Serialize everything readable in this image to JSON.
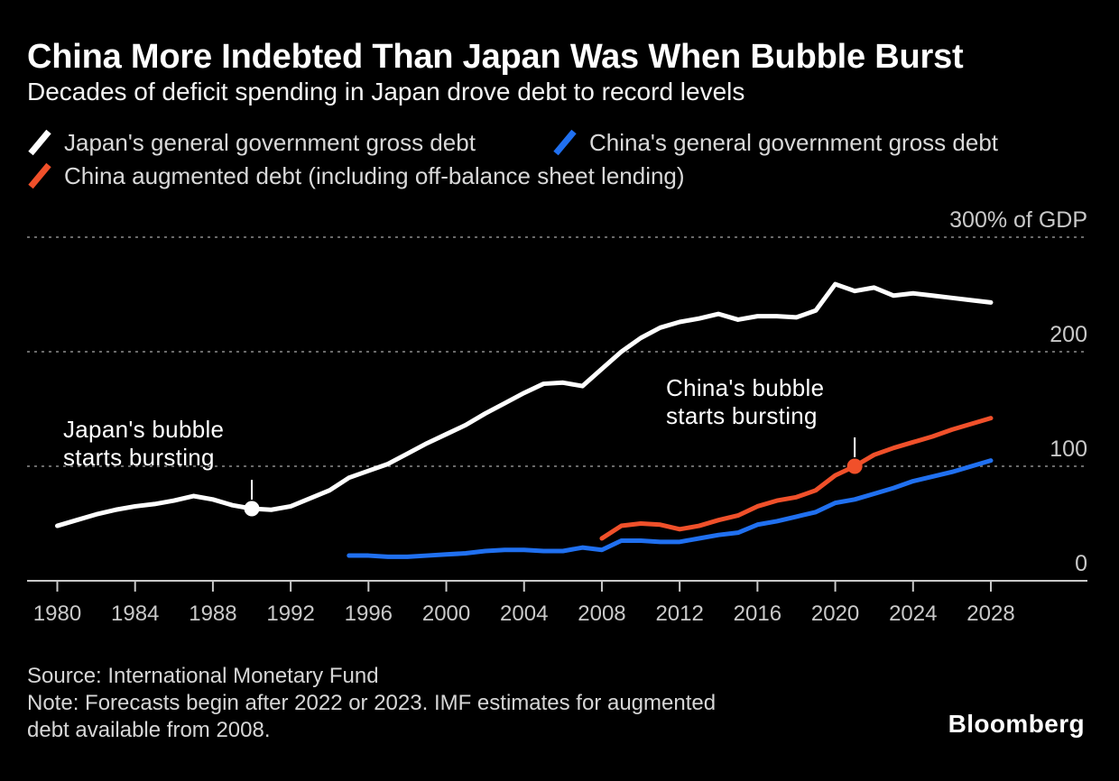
{
  "chart_data": {
    "type": "line",
    "title": "China More Indebted Than Japan Was When Bubble Burst",
    "subtitle": "Decades of deficit spending in Japan drove debt to record levels",
    "unit": "% of GDP",
    "xlim": [
      1980,
      2028
    ],
    "ylim": [
      0,
      300
    ],
    "grid": "dotted-horizontal",
    "legend_position": "top",
    "x_ticks": [
      1980,
      1984,
      1988,
      1992,
      1996,
      2000,
      2004,
      2008,
      2012,
      2016,
      2020,
      2024,
      2028
    ],
    "y_ticks": [
      {
        "value": 0,
        "label": "0"
      },
      {
        "value": 100,
        "label": "100"
      },
      {
        "value": 200,
        "label": "200"
      },
      {
        "value": 300,
        "label": "300% of GDP"
      }
    ],
    "grid_values": [
      100,
      200,
      300
    ],
    "series": [
      {
        "id": "japan",
        "name": "Japan's general government gross debt",
        "color": "#ffffff",
        "start_year": 1980,
        "values": [
          48,
          53,
          58,
          62,
          65,
          67,
          70,
          74,
          71,
          66,
          63,
          62,
          65,
          72,
          79,
          90,
          96,
          102,
          111,
          120,
          128,
          136,
          146,
          155,
          164,
          172,
          173,
          170,
          185,
          200,
          212,
          221,
          226,
          229,
          233,
          228,
          231,
          231,
          230,
          236,
          259,
          253,
          256,
          249,
          251,
          249,
          247,
          245,
          243
        ]
      },
      {
        "id": "china_gov",
        "name": "China's general government gross debt",
        "color": "#2070f0",
        "start_year": 1995,
        "values": [
          22,
          22,
          21,
          21,
          22,
          23,
          24,
          26,
          27,
          27,
          26,
          26,
          29,
          27,
          35,
          35,
          34,
          34,
          37,
          40,
          42,
          49,
          52,
          56,
          60,
          68,
          71,
          76,
          81,
          87,
          91,
          95,
          100,
          105
        ]
      },
      {
        "id": "china_augmented",
        "name": "China augmented debt (including off-balance sheet lending)",
        "color": "#f0502a",
        "start_year": 2008,
        "values": [
          37,
          48,
          50,
          49,
          45,
          48,
          53,
          57,
          65,
          70,
          73,
          79,
          92,
          100,
          110,
          116,
          121,
          126,
          132,
          137,
          142
        ]
      }
    ],
    "annotations": [
      {
        "id": "japan_bubble",
        "line1": "Japan's bubble",
        "line2": "starts bursting",
        "year": 1990,
        "value": 63,
        "marker_color": "#ffffff"
      },
      {
        "id": "china_bubble",
        "line1": "China's bubble",
        "line2": "starts bursting",
        "year": 2021,
        "value": 100,
        "marker_color": "#f0502a"
      }
    ]
  },
  "footer": {
    "source": "Source: International Monetary Fund",
    "note_line1": "Note: Forecasts begin after 2022 or 2023. IMF estimates for augmented",
    "note_line2": "debt available from 2008.",
    "brand": "Bloomberg"
  }
}
